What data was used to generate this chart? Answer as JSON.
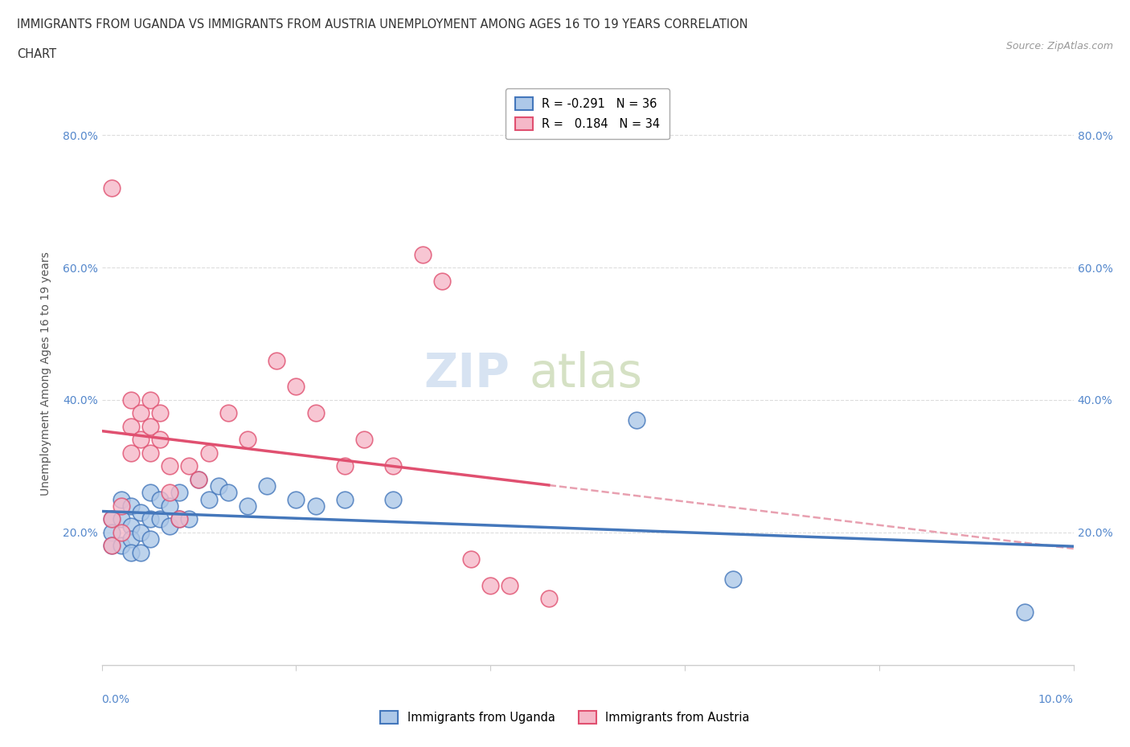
{
  "title_line1": "IMMIGRANTS FROM UGANDA VS IMMIGRANTS FROM AUSTRIA UNEMPLOYMENT AMONG AGES 16 TO 19 YEARS CORRELATION",
  "title_line2": "CHART",
  "source": "Source: ZipAtlas.com",
  "ylabel": "Unemployment Among Ages 16 to 19 years",
  "legend1_label": "Immigrants from Uganda",
  "legend2_label": "Immigrants from Austria",
  "R_uganda": -0.291,
  "N_uganda": 36,
  "R_austria": 0.184,
  "N_austria": 34,
  "uganda_color": "#adc8e8",
  "austria_color": "#f5b8c8",
  "uganda_line_color": "#4477bb",
  "austria_line_color": "#e05070",
  "dash_color": "#e8a0b0",
  "watermark_color": "#d0dff0",
  "watermark_color2": "#c8d8b0",
  "uganda_x": [
    0.001,
    0.001,
    0.001,
    0.002,
    0.002,
    0.002,
    0.003,
    0.003,
    0.003,
    0.003,
    0.004,
    0.004,
    0.004,
    0.005,
    0.005,
    0.005,
    0.006,
    0.006,
    0.007,
    0.007,
    0.008,
    0.008,
    0.009,
    0.01,
    0.011,
    0.012,
    0.013,
    0.015,
    0.017,
    0.02,
    0.022,
    0.025,
    0.03,
    0.055,
    0.065,
    0.095
  ],
  "uganda_y": [
    0.22,
    0.2,
    0.18,
    0.25,
    0.22,
    0.18,
    0.24,
    0.21,
    0.19,
    0.17,
    0.23,
    0.2,
    0.17,
    0.26,
    0.22,
    0.19,
    0.25,
    0.22,
    0.24,
    0.21,
    0.26,
    0.22,
    0.22,
    0.28,
    0.25,
    0.27,
    0.26,
    0.24,
    0.27,
    0.25,
    0.24,
    0.25,
    0.25,
    0.37,
    0.13,
    0.08
  ],
  "austria_x": [
    0.001,
    0.001,
    0.002,
    0.002,
    0.003,
    0.003,
    0.003,
    0.004,
    0.004,
    0.005,
    0.005,
    0.005,
    0.006,
    0.006,
    0.007,
    0.007,
    0.008,
    0.009,
    0.01,
    0.011,
    0.013,
    0.015,
    0.018,
    0.02,
    0.022,
    0.025,
    0.027,
    0.03,
    0.033,
    0.035,
    0.038,
    0.04,
    0.042,
    0.046
  ],
  "austria_y": [
    0.22,
    0.18,
    0.24,
    0.2,
    0.4,
    0.36,
    0.32,
    0.38,
    0.34,
    0.4,
    0.36,
    0.32,
    0.38,
    0.34,
    0.3,
    0.26,
    0.22,
    0.3,
    0.28,
    0.32,
    0.38,
    0.34,
    0.46,
    0.42,
    0.38,
    0.3,
    0.34,
    0.3,
    0.62,
    0.58,
    0.16,
    0.12,
    0.12,
    0.1
  ],
  "austria_outlier_x": [
    0.001
  ],
  "austria_outlier_y": [
    0.72
  ],
  "xmin": 0.0,
  "xmax": 0.1,
  "ymin": 0.0,
  "ymax": 0.88,
  "yticks": [
    0.2,
    0.4,
    0.6,
    0.8
  ],
  "ytick_labels": [
    "20.0%",
    "40.0%",
    "60.0%",
    "80.0%"
  ]
}
